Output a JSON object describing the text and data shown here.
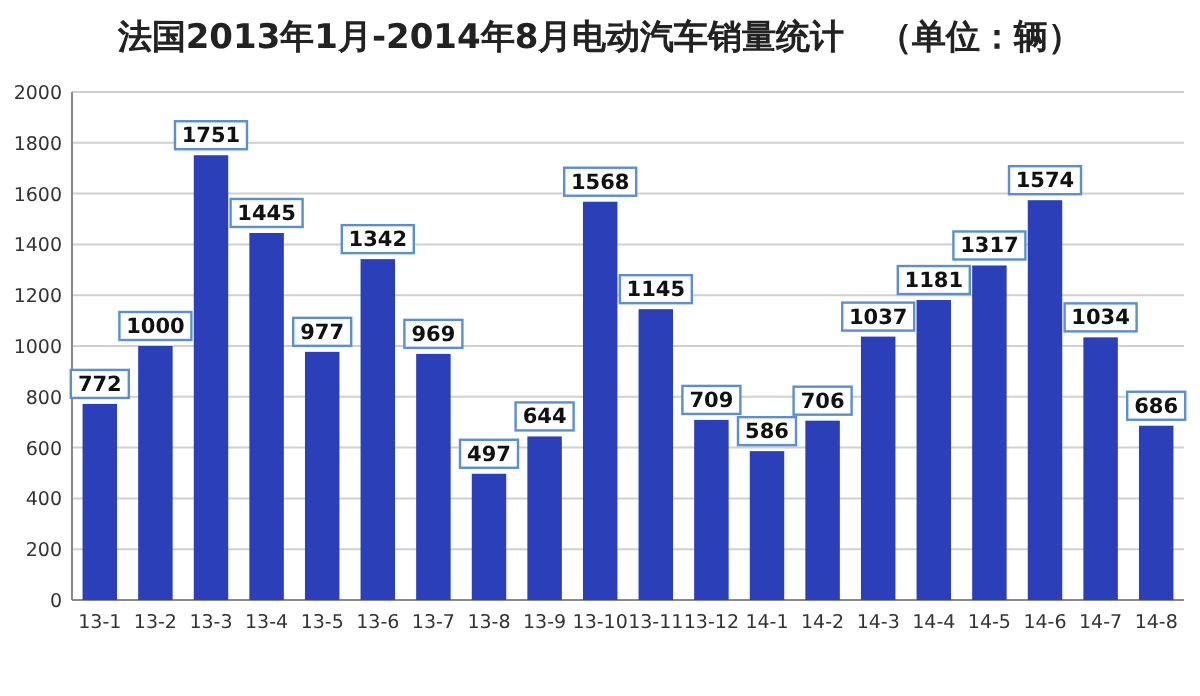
{
  "chart_data": {
    "type": "bar",
    "title": "法国2013年1月-2014年8月电动汽车销量统计　（单位：辆）",
    "categories": [
      "13-1",
      "13-2",
      "13-3",
      "13-4",
      "13-5",
      "13-6",
      "13-7",
      "13-8",
      "13-9",
      "13-10",
      "13-11",
      "13-12",
      "14-1",
      "14-2",
      "14-3",
      "14-4",
      "14-5",
      "14-6",
      "14-7",
      "14-8"
    ],
    "values": [
      772,
      1000,
      1751,
      1445,
      977,
      1342,
      969,
      497,
      644,
      1568,
      1145,
      709,
      586,
      706,
      1037,
      1181,
      1317,
      1574,
      1034,
      686
    ],
    "color": "#2b3fb8",
    "ylim": [
      0,
      2000
    ],
    "yticks": [
      0,
      200,
      400,
      600,
      800,
      1000,
      1200,
      1400,
      1600,
      1800,
      2000
    ],
    "grid": "y",
    "data_labels": true
  }
}
